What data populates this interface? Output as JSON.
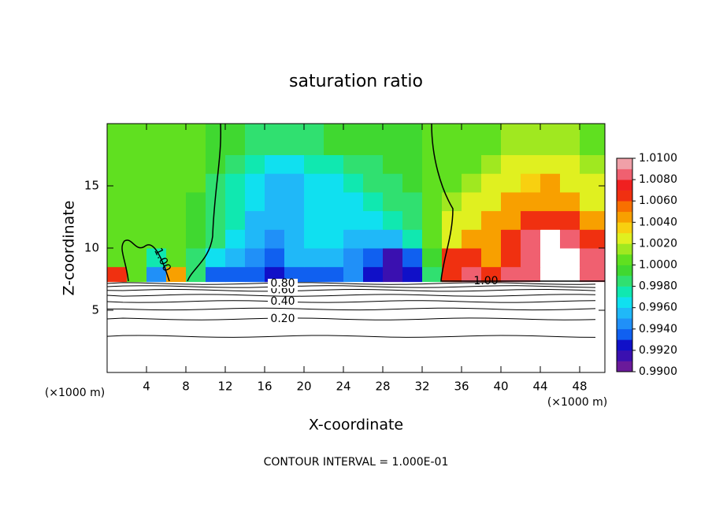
{
  "chart_data": {
    "type": "contour",
    "title": "saturation ratio",
    "x_label": "X-coordinate",
    "y_label": "Z-coordinate",
    "x_unit": "(×1000 m)",
    "y_unit": "(×1000 m)",
    "footnote": "CONTOUR INTERVAL = 1.000E-01",
    "xlim": [
      0,
      50.56
    ],
    "ylim": [
      0,
      20
    ],
    "xticks": [
      4,
      8,
      12,
      16,
      20,
      24,
      28,
      32,
      36,
      40,
      44,
      48
    ],
    "yticks": [
      5,
      10,
      15
    ],
    "x_edges": [
      0,
      2,
      4,
      6,
      8,
      10,
      12,
      14,
      16,
      18,
      20,
      22,
      24,
      26,
      28,
      30,
      32,
      34,
      36,
      38,
      40,
      42,
      44,
      46,
      48,
      50.56
    ],
    "z_edges": [
      7.3,
      8.5,
      10,
      11.5,
      13,
      14.5,
      16,
      17.5,
      20
    ],
    "values": [
      [
        1.006,
        1.0005,
        0.994,
        1.004,
        0.998,
        0.993,
        0.993,
        0.993,
        0.992,
        0.993,
        0.993,
        0.993,
        0.994,
        0.992,
        0.991,
        0.992,
        0.9985,
        1.007,
        1.008,
        1.007,
        1.008,
        1.009,
        1.012,
        1.011,
        1.009
      ],
      [
        1.001,
        1.0002,
        0.997,
        1.001,
        0.9985,
        0.996,
        0.995,
        0.994,
        0.993,
        0.995,
        0.995,
        0.995,
        0.994,
        0.993,
        0.991,
        0.993,
        0.9995,
        1.006,
        1.007,
        1.005,
        1.007,
        1.008,
        1.011,
        1.011,
        1.008
      ],
      [
        1.0005,
        1.0,
        1.0,
        1.0005,
        0.9995,
        0.998,
        0.996,
        0.995,
        0.994,
        0.995,
        0.996,
        0.996,
        0.995,
        0.995,
        0.995,
        0.997,
        1.0005,
        1.003,
        1.004,
        1.005,
        1.006,
        1.008,
        1.01,
        1.009,
        1.007
      ],
      [
        1.0005,
        1.0003,
        1.0002,
        1.0,
        0.9995,
        0.998,
        0.997,
        0.995,
        0.995,
        0.995,
        0.996,
        0.996,
        0.996,
        0.996,
        0.997,
        0.998,
        1.0005,
        1.002,
        1.003,
        1.004,
        1.005,
        1.006,
        1.007,
        1.006,
        1.005
      ],
      [
        1.0005,
        1.0003,
        1.0002,
        1.0001,
        0.9995,
        0.998,
        0.997,
        0.996,
        0.995,
        0.995,
        0.996,
        0.996,
        0.996,
        0.997,
        0.998,
        0.9985,
        1.0005,
        1.0015,
        1.002,
        1.003,
        1.004,
        1.005,
        1.005,
        1.004,
        1.003
      ],
      [
        1.0005,
        1.0003,
        1.0002,
        1.0001,
        1.0,
        0.9985,
        0.9975,
        0.996,
        0.9955,
        0.9955,
        0.996,
        0.9965,
        0.997,
        0.998,
        0.9985,
        0.999,
        1.0005,
        1.001,
        1.0015,
        1.002,
        1.003,
        1.0035,
        1.004,
        1.003,
        1.002
      ],
      [
        1.0005,
        1.0003,
        1.0002,
        1.0001,
        1.0,
        0.999,
        0.998,
        0.997,
        0.9965,
        0.9965,
        0.997,
        0.9975,
        0.998,
        0.9985,
        0.999,
        0.9993,
        1.0005,
        1.001,
        1.001,
        1.0015,
        1.002,
        1.002,
        1.0025,
        1.002,
        1.0015
      ],
      [
        1.0005,
        1.0004,
        1.0003,
        1.0002,
        1.0001,
        0.9995,
        0.999,
        0.9985,
        0.998,
        0.998,
        0.9985,
        0.999,
        0.9992,
        0.9994,
        0.9995,
        0.9996,
        1.0004,
        1.0008,
        1.001,
        1.001,
        1.0012,
        1.0012,
        1.0015,
        1.0012,
        1.001
      ]
    ],
    "colorbar": {
      "lim": [
        0.99,
        1.01
      ],
      "colors": [
        "#6a1a9a",
        "#3a10b0",
        "#1010c8",
        "#1060f0",
        "#2090f8",
        "#20b8f8",
        "#10e0f0",
        "#10e8b0",
        "#30e070",
        "#40d830",
        "#60e020",
        "#a0e820",
        "#e0f020",
        "#f8d010",
        "#f8a000",
        "#f87000",
        "#f03010",
        "#f02020",
        "#f06070",
        "#f0a0a8"
      ],
      "ticks": [
        {
          "value": 0.99,
          "label": "0.9900"
        },
        {
          "value": 0.992,
          "label": "0.9920"
        },
        {
          "value": 0.994,
          "label": "0.9940"
        },
        {
          "value": 0.996,
          "label": "0.9960"
        },
        {
          "value": 0.998,
          "label": "0.9980"
        },
        {
          "value": 1.0,
          "label": "1.0000"
        },
        {
          "value": 1.002,
          "label": "1.0020"
        },
        {
          "value": 1.004,
          "label": "1.0040"
        },
        {
          "value": 1.006,
          "label": "1.0060"
        },
        {
          "value": 1.008,
          "label": "1.0080"
        },
        {
          "value": 1.01,
          "label": "1.0100"
        }
      ]
    },
    "contour_lines": [
      {
        "level": 0.1,
        "z": 2.9
      },
      {
        "level": 0.2,
        "z": 4.3,
        "label": "0.20"
      },
      {
        "level": 0.3,
        "z": 5.1
      },
      {
        "level": 0.4,
        "z": 5.7,
        "label": "0.40"
      },
      {
        "level": 0.5,
        "z": 6.2
      },
      {
        "level": 0.6,
        "z": 6.6,
        "label": "0.60"
      },
      {
        "level": 0.7,
        "z": 6.9
      },
      {
        "level": 0.8,
        "z": 7.15,
        "label": "0.80"
      }
    ],
    "saturation_contour": {
      "level": 1.0,
      "label": "1.00"
    }
  }
}
